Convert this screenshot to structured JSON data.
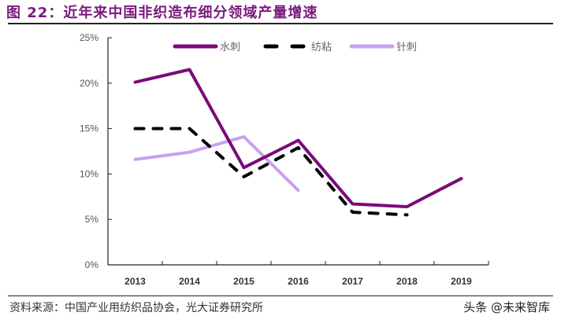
{
  "header": {
    "title": "图 22：近年来中国非织造布细分领域产量增速"
  },
  "footer": {
    "source": "资料来源：中国产业用纺织品协会，光大证券研究所",
    "watermark": "头条 @未来智库"
  },
  "colors": {
    "title": "#7a1a7e",
    "spunlace": "#7b0a7b",
    "spunbond": "#000000",
    "needle": "#c9a0f0"
  },
  "chart_data": {
    "type": "line",
    "title": "近年来中国非织造布细分领域产量增速",
    "xlabel": "",
    "ylabel": "",
    "categories": [
      "2013",
      "2014",
      "2015",
      "2016",
      "2017",
      "2018",
      "2019"
    ],
    "ylim": [
      0,
      25
    ],
    "yticks": [
      "0%",
      "5%",
      "10%",
      "15%",
      "20%",
      "25%"
    ],
    "grid": false,
    "legend_position": "top",
    "series": [
      {
        "name": "水刺",
        "style": "solid",
        "color": "#7b0a7b",
        "values": [
          20.1,
          21.5,
          10.7,
          13.7,
          6.7,
          6.4,
          9.5
        ]
      },
      {
        "name": "纺粘",
        "style": "dashed",
        "color": "#000000",
        "values": [
          15.0,
          15.0,
          9.7,
          12.9,
          5.8,
          5.5,
          null
        ]
      },
      {
        "name": "针刺",
        "style": "solid",
        "color": "#c9a0f0",
        "values": [
          11.6,
          12.4,
          14.1,
          8.2,
          null,
          null,
          null
        ]
      }
    ]
  }
}
